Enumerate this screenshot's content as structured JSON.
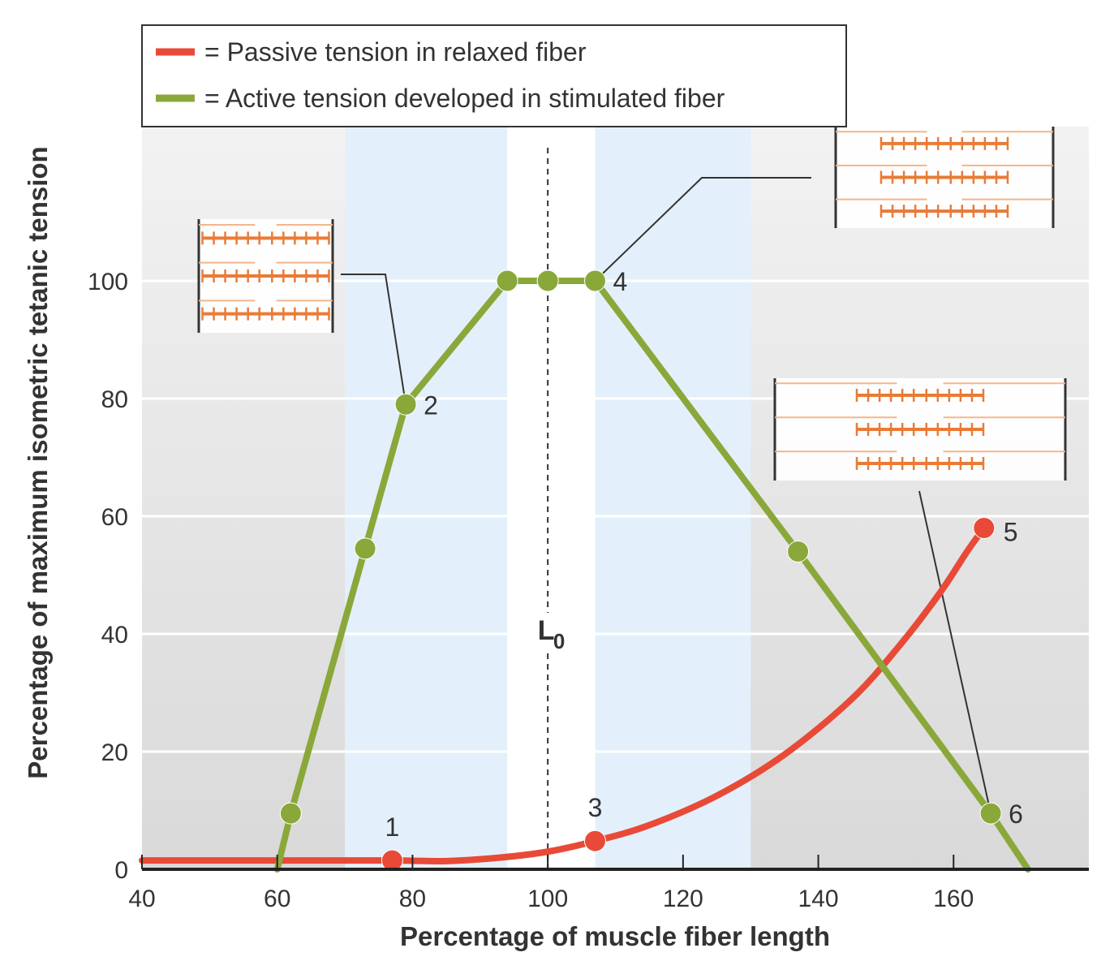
{
  "chart_data": {
    "type": "line",
    "title": "",
    "xlabel": "Percentage of muscle fiber length",
    "ylabel": "Percentage of maximum isometric tetanic tension",
    "xlim": [
      40,
      180
    ],
    "ylim": [
      0,
      100
    ],
    "x_ticks": [
      40,
      60,
      80,
      100,
      120,
      140,
      160
    ],
    "y_ticks": [
      0,
      20,
      40,
      60,
      80,
      100
    ],
    "grid": true,
    "legend_position": "top-left",
    "reference_line": {
      "x": 100,
      "label_main": "L",
      "label_sub": "0"
    },
    "shaded_bands": [
      {
        "x_start": 70,
        "x_end": 94,
        "color": "#e3f0fb"
      },
      {
        "x_start": 107,
        "x_end": 130,
        "color": "#e3f0fb"
      },
      {
        "x_start": 94,
        "x_end": 107,
        "color": "#ffffff"
      }
    ],
    "series": [
      {
        "name": "Passive tension in relaxed fiber",
        "legend_label": "= Passive tension in relaxed fiber",
        "color": "#e84a37",
        "x": [
          40,
          60,
          77,
          85,
          93,
          100,
          107,
          115,
          125,
          135,
          145,
          152,
          158,
          162,
          164.5
        ],
        "y": [
          1.5,
          1.5,
          1.5,
          1.4,
          2.0,
          3.0,
          4.8,
          7.5,
          12.5,
          19.5,
          29,
          38,
          47,
          54,
          58
        ],
        "markers": [
          {
            "x": 77,
            "y": 1.5,
            "label": "1"
          },
          {
            "x": 107,
            "y": 4.8,
            "label": "3"
          },
          {
            "x": 164.5,
            "y": 58,
            "label": "5"
          }
        ]
      },
      {
        "name": "Active tension developed in stimulated fiber",
        "legend_label": "= Active tension developed in stimulated fiber",
        "color": "#8aa83a",
        "x": [
          60,
          62,
          73,
          79,
          94,
          100,
          107,
          137,
          165.5,
          171
        ],
        "y": [
          0,
          9.5,
          54.5,
          79,
          100,
          100,
          100,
          54,
          9.5,
          0
        ],
        "markers": [
          {
            "x": 62,
            "y": 9.5,
            "label": ""
          },
          {
            "x": 73,
            "y": 54.5,
            "label": ""
          },
          {
            "x": 79,
            "y": 79,
            "label": "2"
          },
          {
            "x": 94,
            "y": 100,
            "label": ""
          },
          {
            "x": 100,
            "y": 100,
            "label": ""
          },
          {
            "x": 107,
            "y": 100,
            "label": "4"
          },
          {
            "x": 137,
            "y": 54,
            "label": ""
          },
          {
            "x": 165.5,
            "y": 9.5,
            "label": "6"
          }
        ]
      }
    ]
  },
  "sarcomere_icons": [
    {
      "name": "sarcomere-short",
      "for_point": "2"
    },
    {
      "name": "sarcomere-optimal",
      "for_point": "4"
    },
    {
      "name": "sarcomere-long",
      "for_point": "6"
    }
  ]
}
